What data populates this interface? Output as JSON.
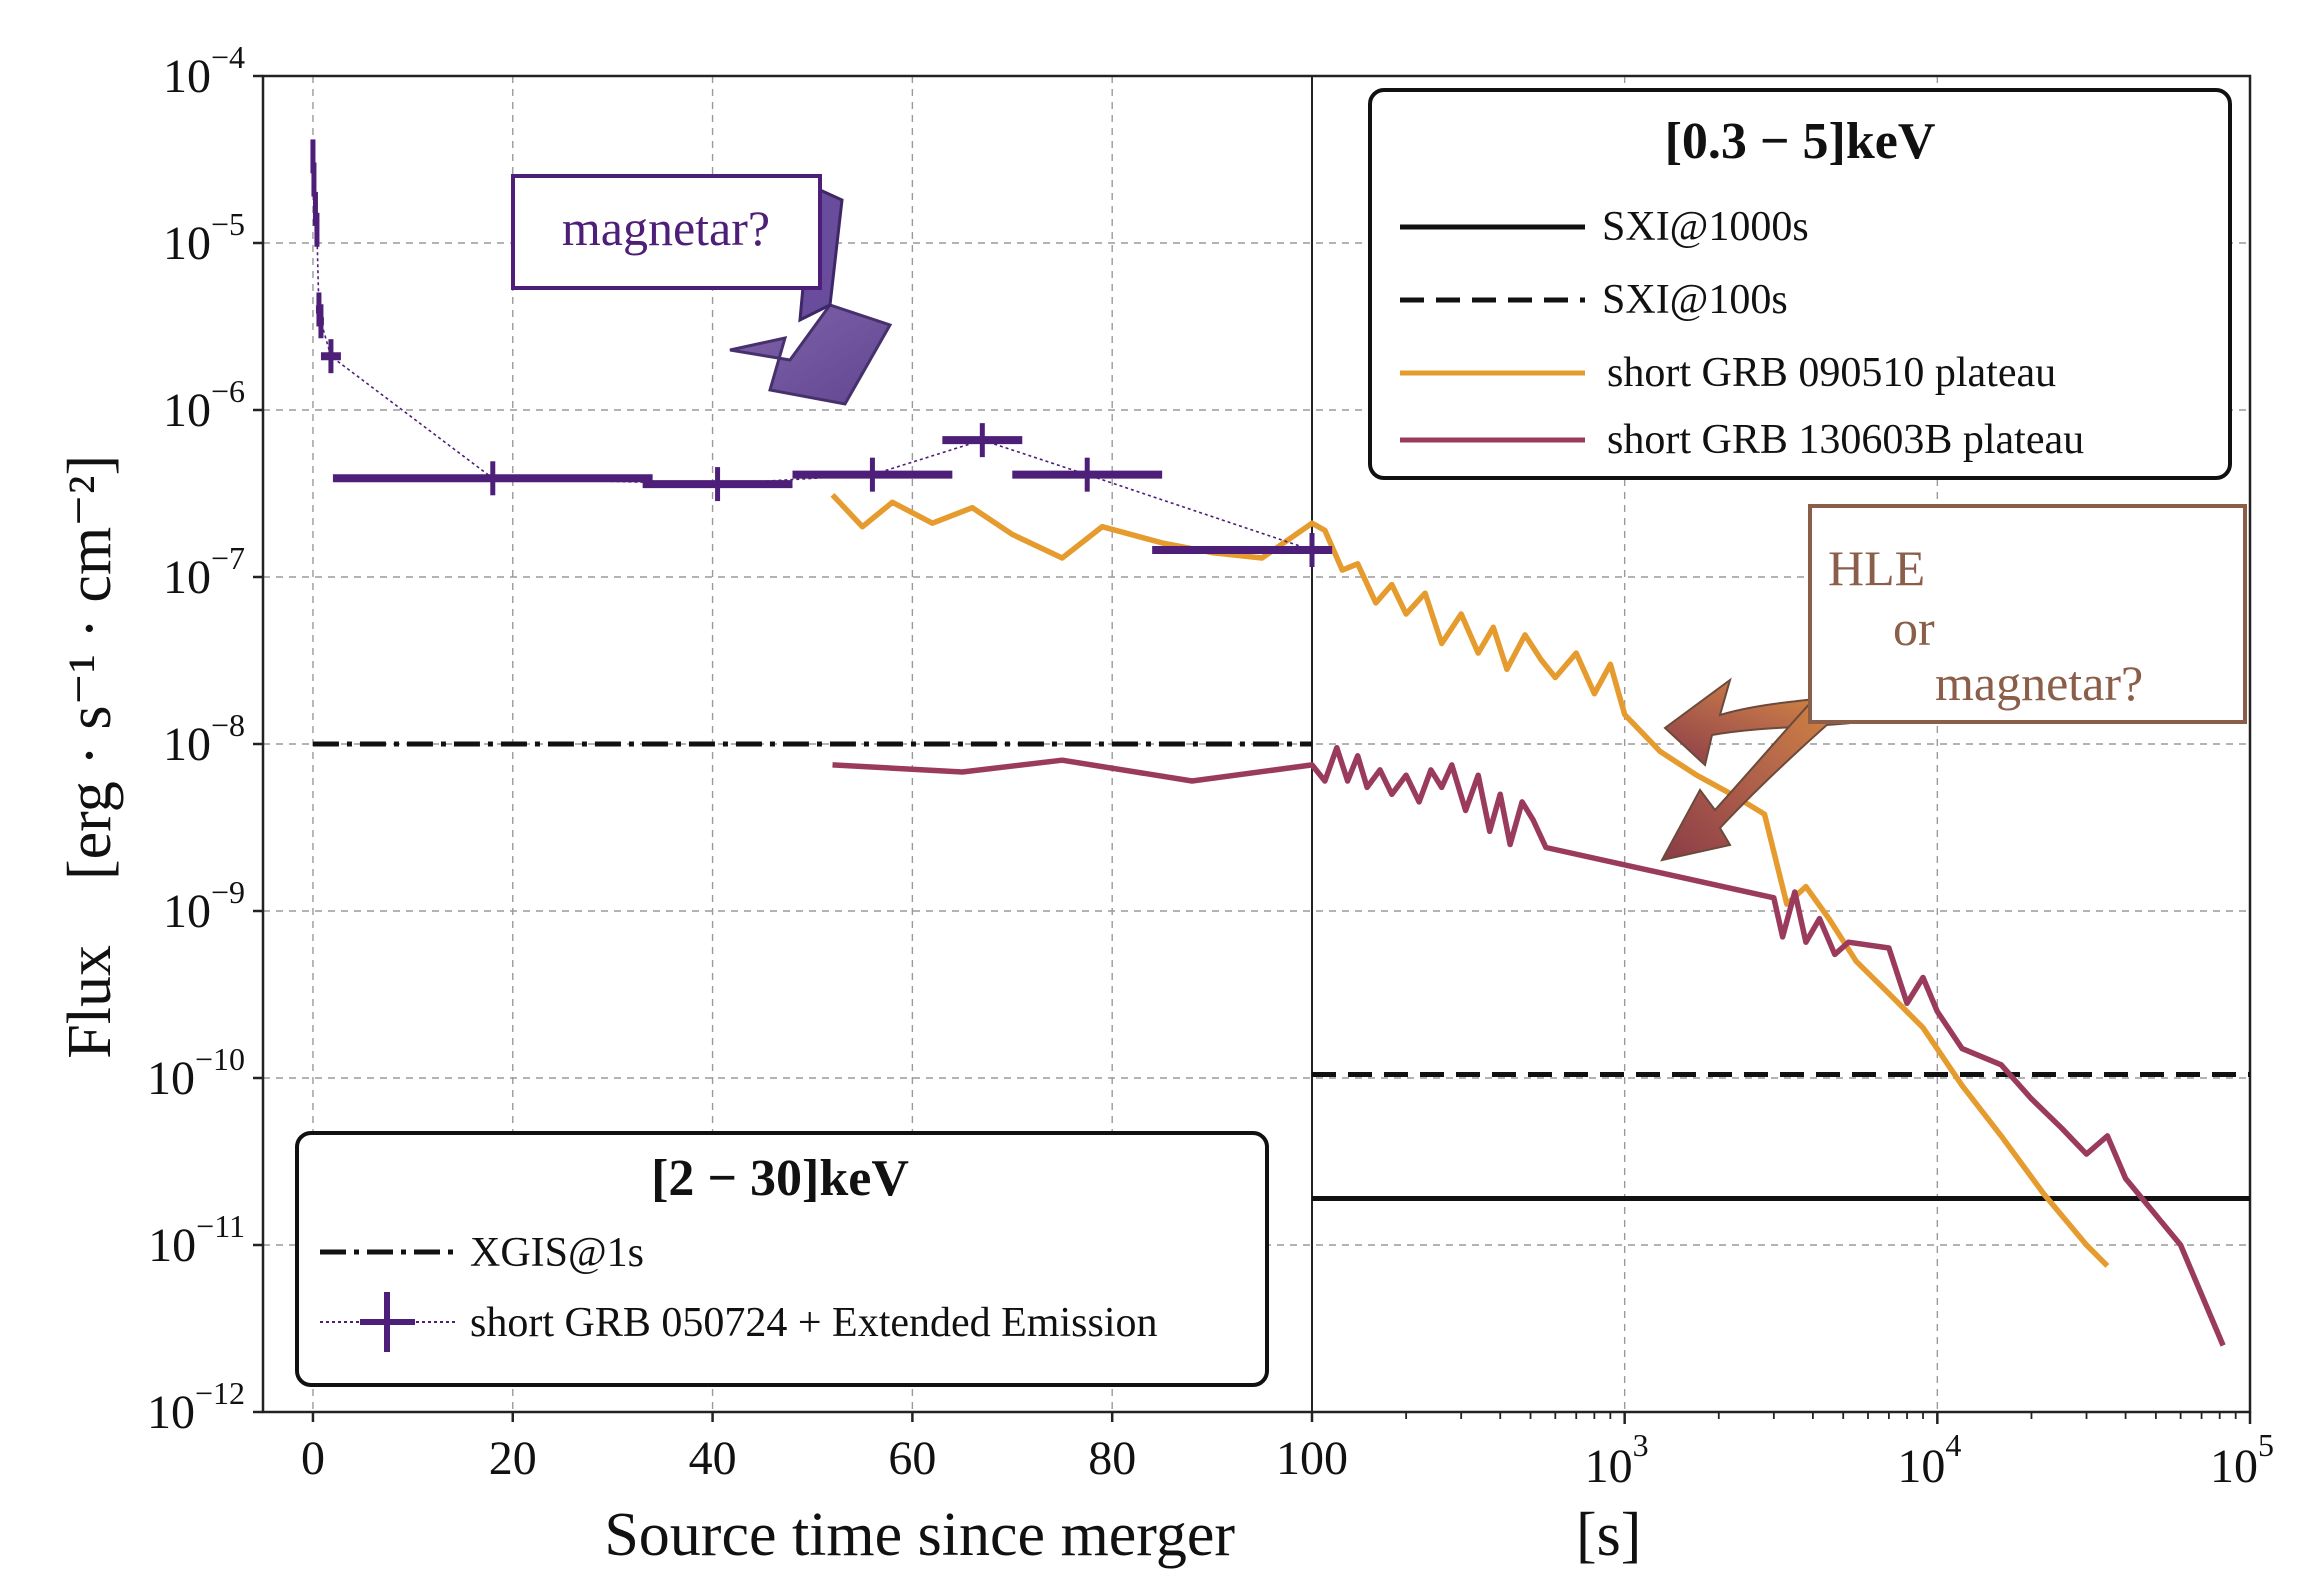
{
  "chart_data": {
    "type": "line",
    "xlabel": "Source time since merger",
    "xlabel_unit": "[s]",
    "ylabel_main": "Flux",
    "ylabel_unit": "[erg · s⁻¹ · cm⁻²]",
    "y_scale": "log",
    "ylim": [
      1e-12,
      0.0001
    ],
    "y_ticks": [
      {
        "base": "10",
        "exp": "−4"
      },
      {
        "base": "10",
        "exp": "−5"
      },
      {
        "base": "10",
        "exp": "−6"
      },
      {
        "base": "10",
        "exp": "−7"
      },
      {
        "base": "10",
        "exp": "−8"
      },
      {
        "base": "10",
        "exp": "−9"
      },
      {
        "base": "10",
        "exp": "−10"
      },
      {
        "base": "10",
        "exp": "−11"
      },
      {
        "base": "10",
        "exp": "−12"
      }
    ],
    "left_panel": {
      "x_scale": "linear",
      "xlim": [
        -5,
        100
      ],
      "x_ticks": [
        "0",
        "20",
        "40",
        "60",
        "80",
        "100"
      ],
      "legend": {
        "title": "[2 − 30]keV",
        "entries": [
          "XGIS@1s",
          "short GRB 050724 + Extended Emission"
        ],
        "placement": "bottom-left"
      },
      "series": [
        {
          "name": "XGIS@1s",
          "style": "dashdot",
          "color": "#111111",
          "x": [
            0,
            100
          ],
          "y": [
            1e-08,
            1e-08
          ]
        },
        {
          "name": "short GRB 050724 + Extended Emission",
          "style": "errorbar",
          "color": "#4e1f78",
          "points": [
            {
              "x": 0.0,
              "y": 3.3e-05,
              "xerr": 0.1
            },
            {
              "x": 0.1,
              "y": 2.4e-05,
              "xerr": 0.1
            },
            {
              "x": 0.25,
              "y": 1.6e-05,
              "xerr": 0.1
            },
            {
              "x": 0.4,
              "y": 1.2e-05,
              "xerr": 0.15
            },
            {
              "x": 0.6,
              "y": 4e-06,
              "xerr": 0.3
            },
            {
              "x": 0.8,
              "y": 3.4e-06,
              "xerr": 0.3
            },
            {
              "x": 1.8,
              "y": 2.1e-06,
              "xerr": 1.0
            },
            {
              "x": 18,
              "y": 3.9e-07,
              "xerr": 16
            },
            {
              "x": 40.5,
              "y": 3.6e-07,
              "xerr": 7.5
            },
            {
              "x": 56,
              "y": 4.1e-07,
              "xerr": 8
            },
            {
              "x": 67,
              "y": 6.6e-07,
              "xerr": 4
            },
            {
              "x": 77.5,
              "y": 4.1e-07,
              "xerr": 7.5
            },
            {
              "x": 100,
              "y": 1.45e-07,
              "xerr": 16
            }
          ]
        }
      ]
    },
    "right_panel": {
      "x_scale": "log",
      "xlim": [
        100,
        100000
      ],
      "x_ticks": [
        {
          "base": "10",
          "exp": "3"
        },
        {
          "base": "10",
          "exp": "4"
        },
        {
          "base": "10",
          "exp": "5"
        }
      ],
      "legend": {
        "title": "[0.3 − 5]keV",
        "entries": [
          "SXI@1000s",
          "SXI@100s",
          "short GRB 090510 plateau",
          "short GRB 130603B plateau"
        ],
        "placement": "top-right"
      },
      "series": [
        {
          "name": "SXI@1000s",
          "style": "solid",
          "color": "#111111",
          "x": [
            100,
            100000
          ],
          "y": [
            1.9e-11,
            1.9e-11
          ]
        },
        {
          "name": "SXI@100s",
          "style": "dashed",
          "color": "#111111",
          "x": [
            100,
            100000
          ],
          "y": [
            1.05e-10,
            1.05e-10
          ]
        }
      ]
    },
    "curves": [
      {
        "name": "short GRB 090510 plateau",
        "color": "#e59b2e",
        "x": [
          52,
          55,
          58,
          62,
          66,
          70,
          75,
          79,
          85,
          90,
          95,
          100,
          110,
          125,
          140,
          160,
          180,
          200,
          230,
          260,
          300,
          340,
          380,
          420,
          480,
          540,
          600,
          700,
          800,
          900,
          1000,
          1300,
          1700,
          2200,
          2800,
          3300,
          3800,
          4500,
          5500,
          7000,
          9000,
          12000,
          16000,
          22000,
          30000,
          35000
        ],
        "y": [
          3.1e-07,
          2e-07,
          2.8e-07,
          2.1e-07,
          2.6e-07,
          1.8e-07,
          1.3e-07,
          2e-07,
          1.6e-07,
          1.4e-07,
          1.3e-07,
          2.1e-07,
          1.9e-07,
          1.1e-07,
          1.2e-07,
          7e-08,
          9e-08,
          6e-08,
          8e-08,
          4e-08,
          6e-08,
          3.5e-08,
          5e-08,
          2.8e-08,
          4.5e-08,
          3.2e-08,
          2.5e-08,
          3.5e-08,
          2e-08,
          3e-08,
          1.5e-08,
          9e-09,
          6.5e-09,
          5e-09,
          3.8e-09,
          1.1e-09,
          1.4e-09,
          9e-10,
          5e-10,
          3.2e-10,
          2e-10,
          9e-11,
          4.5e-11,
          2e-11,
          1e-11,
          7.5e-12
        ]
      },
      {
        "name": "short GRB 130603B plateau",
        "color": "#9a3b5d",
        "x": [
          52,
          65,
          75,
          88,
          100,
          110,
          120,
          130,
          140,
          150,
          165,
          180,
          200,
          220,
          240,
          260,
          280,
          310,
          340,
          370,
          400,
          430,
          470,
          510,
          560,
          3000,
          3200,
          3500,
          3800,
          4200,
          4700,
          5200,
          7000,
          8000,
          9000,
          10000,
          12000,
          16000,
          20000,
          25000,
          30000,
          35000,
          40000,
          60000,
          82000
        ],
        "y": [
          7.5e-09,
          6.8e-09,
          8e-09,
          6e-09,
          7.5e-09,
          6e-09,
          9.5e-09,
          6e-09,
          8.5e-09,
          5.5e-09,
          7e-09,
          5e-09,
          6.5e-09,
          4.5e-09,
          7e-09,
          5.5e-09,
          7.5e-09,
          4e-09,
          6.5e-09,
          3e-09,
          5e-09,
          2.5e-09,
          4.5e-09,
          3.5e-09,
          2.4e-09,
          1.2e-09,
          7e-10,
          1.3e-09,
          6.5e-10,
          9e-10,
          5.5e-10,
          6.5e-10,
          6e-10,
          2.8e-10,
          4e-10,
          2.5e-10,
          1.5e-10,
          1.2e-10,
          7.5e-11,
          5e-11,
          3.5e-11,
          4.5e-11,
          2.5e-11,
          1e-11,
          2.5e-12
        ]
      }
    ],
    "annotations": [
      {
        "text": "magnetar?",
        "color": "#4e1f78",
        "target_x": 52,
        "target_y": 2e-07
      },
      {
        "lines": [
          "HLE",
          "or",
          "magnetar?"
        ],
        "color": "#8b5e4a",
        "targets": [
          {
            "x": 1400,
            "y": 1.7e-08
          },
          {
            "x": 1300,
            "y": 2.3e-09
          }
        ]
      }
    ]
  }
}
